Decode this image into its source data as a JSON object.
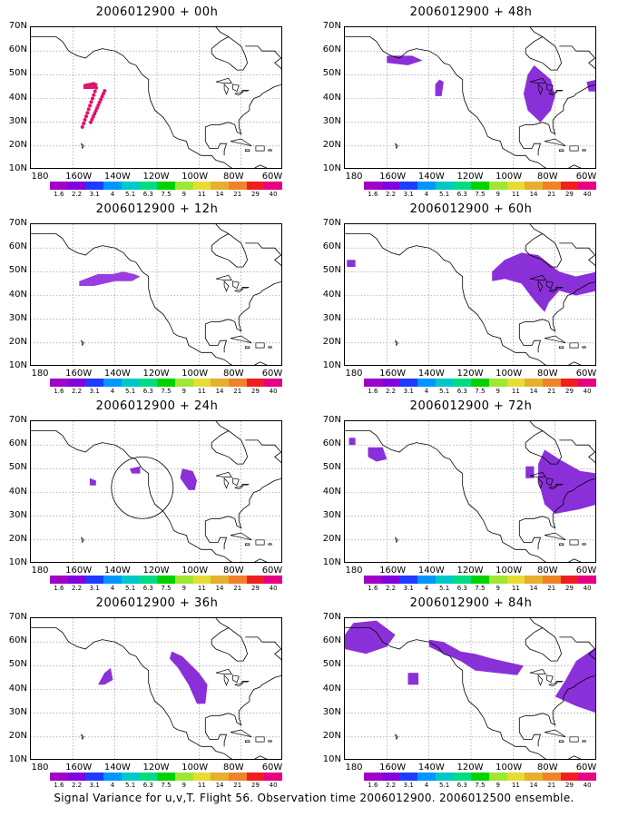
{
  "panels": [
    {
      "title": "2006012900 + 00h"
    },
    {
      "title": "2006012900 + 12h"
    },
    {
      "title": "2006012900 + 24h"
    },
    {
      "title": "2006012900 + 36h"
    },
    {
      "title": "2006012900 + 48h"
    },
    {
      "title": "2006012900 + 60h"
    },
    {
      "title": "2006012900 + 72h"
    },
    {
      "title": "2006012900 + 84h"
    }
  ],
  "lat_labels": [
    "70N",
    "60N",
    "50N",
    "40N",
    "30N",
    "20N",
    "10N"
  ],
  "lon_labels": [
    "180",
    "160W",
    "140W",
    "120W",
    "100W",
    "80W",
    "60W"
  ],
  "colorbar": {
    "labels": [
      "1.6",
      "2.2",
      "3.1",
      "4",
      "5.1",
      "6.3",
      "7.5",
      "9",
      "11",
      "14",
      "21",
      "29",
      "40"
    ],
    "colors": [
      "#a000c8",
      "#8200dc",
      "#1e3cff",
      "#0096ff",
      "#00c8c8",
      "#00dc82",
      "#00d200",
      "#a0e632",
      "#e6dc32",
      "#e6af2d",
      "#f08228",
      "#f01e1e",
      "#e60082"
    ]
  },
  "footer": "Signal Variance for u,v,T. Flight 56. Observation time 2006012900. 2006012500 ensemble."
}
